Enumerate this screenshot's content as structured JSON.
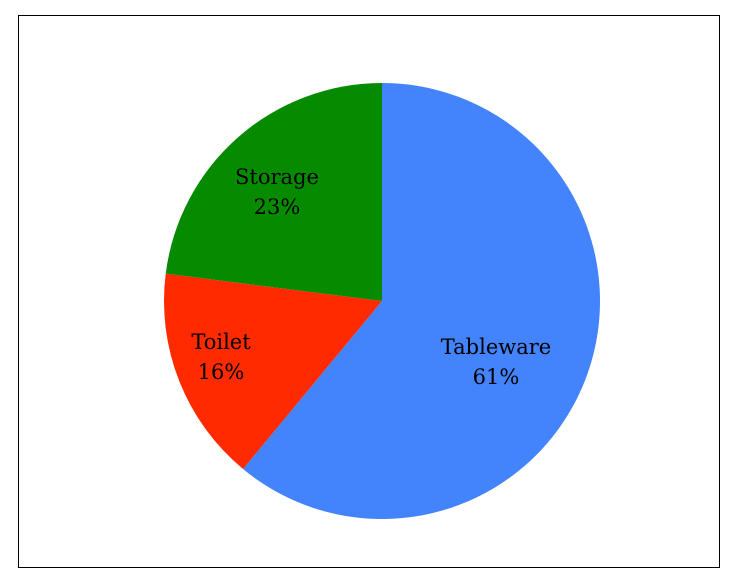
{
  "chart_data": {
    "type": "pie",
    "slices": [
      {
        "label": "Tableware",
        "value": 61,
        "value_label": "61%",
        "color": "#4383fb"
      },
      {
        "label": "Toilet",
        "value": 16,
        "value_label": "16%",
        "color": "#ff2a00"
      },
      {
        "label": "Storage",
        "value": 23,
        "value_label": "23%",
        "color": "#068a00"
      }
    ],
    "start_angle_deg": 0,
    "direction": "clockwise",
    "legend": "none"
  }
}
